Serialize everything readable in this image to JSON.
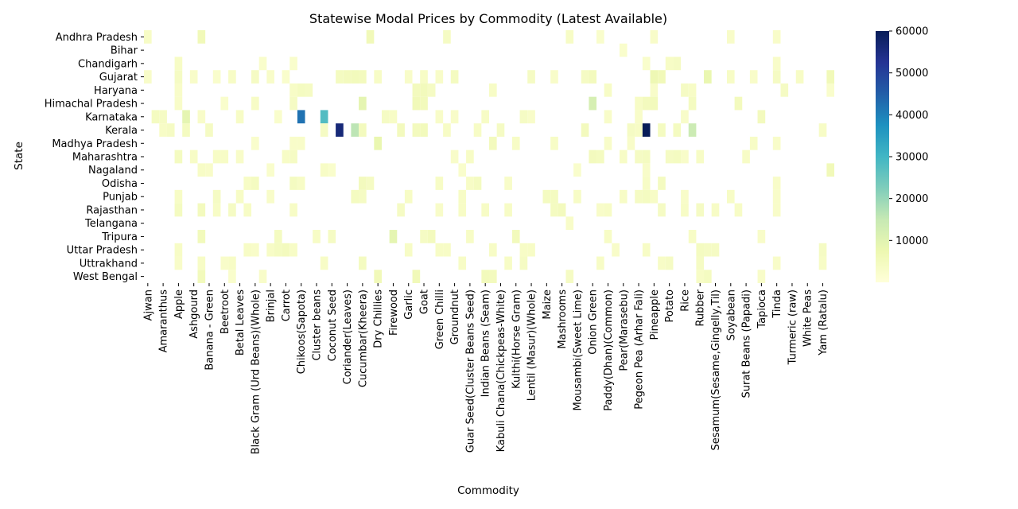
{
  "chart_data": {
    "type": "heatmap",
    "title": "Statewise Modal Prices by Commodity (Latest Available)",
    "xlabel": "Commodity",
    "ylabel": "State",
    "colormap": "YlGnBu",
    "colorbar": {
      "min": 0,
      "max": 60000,
      "ticks": [
        "10000",
        "20000",
        "30000",
        "40000",
        "50000",
        "60000"
      ]
    },
    "states": [
      "Andhra Pradesh",
      "Bihar",
      "Chandigarh",
      "Gujarat",
      "Haryana",
      "Himachal Pradesh",
      "Karnataka",
      "Kerala",
      "Madhya Pradesh",
      "Maharashtra",
      "Nagaland",
      "Odisha",
      "Punjab",
      "Rajasthan",
      "Telangana",
      "Tripura",
      "Uttar Pradesh",
      "Uttrakhand",
      "West Bengal"
    ],
    "x_tick_labels": [
      "Ajwan",
      "Amaranthus",
      "Apple",
      "Ashgourd",
      "Banana - Green",
      "Beetroot",
      "Betal Leaves",
      "Black Gram (Urd Beans)(Whole)",
      "Brinjal",
      "Carrot",
      "Chikoos(Sapota)",
      "Cluster beans",
      "Coconut Seed",
      "Coriander(Leaves)",
      "Cucumbar(Kheera)",
      "Dry Chillies",
      "Firewood",
      "Garlic",
      "Goat",
      "Green Chilli",
      "Groundnut",
      "Guar Seed(Cluster Beans Seed)",
      "Indian Beans (Seam)",
      "Kabuli Chana(Chickpeas-White)",
      "Kulthi(Horse Gram)",
      "Lentil (Masur)(Whole)",
      "Maize",
      "Mashrooms",
      "Mousambi(Sweet Lime)",
      "Onion Green",
      "Paddy(Dhan)(Common)",
      "Pear(Marasebu)",
      "Pegeon Pea (Arhar Fali)",
      "Pineapple",
      "Potato",
      "Rice",
      "Rubber",
      "Sesamum(Sesame,Gingelly,Til)",
      "Soyabean",
      "Surat Beans (Papadi)",
      "Tapioca",
      "Tinda",
      "Turmeric (raw)",
      "White Peas",
      "Yam (Ratalu)"
    ],
    "n_commodities": 90,
    "cells": [
      [
        0,
        0,
        3500
      ],
      [
        0,
        7,
        6000
      ],
      [
        0,
        29,
        6000
      ],
      [
        0,
        39,
        4000
      ],
      [
        0,
        55,
        3500
      ],
      [
        0,
        59,
        2500
      ],
      [
        0,
        66,
        3000
      ],
      [
        0,
        76,
        3000
      ],
      [
        0,
        82,
        3000
      ],
      [
        1,
        62,
        2500
      ],
      [
        2,
        4,
        3500
      ],
      [
        2,
        15,
        2500
      ],
      [
        2,
        19,
        2500
      ],
      [
        2,
        65,
        2500
      ],
      [
        2,
        68,
        3500
      ],
      [
        2,
        69,
        4000
      ],
      [
        2,
        82,
        3000
      ],
      [
        3,
        0,
        3000
      ],
      [
        3,
        4,
        4000
      ],
      [
        3,
        6,
        3000
      ],
      [
        3,
        9,
        2500
      ],
      [
        3,
        11,
        3500
      ],
      [
        3,
        14,
        4000
      ],
      [
        3,
        16,
        3000
      ],
      [
        3,
        18,
        2500
      ],
      [
        3,
        25,
        4500
      ],
      [
        3,
        26,
        5000
      ],
      [
        3,
        27,
        5500
      ],
      [
        3,
        28,
        5000
      ],
      [
        3,
        30,
        3500
      ],
      [
        3,
        34,
        3000
      ],
      [
        3,
        36,
        3500
      ],
      [
        3,
        38,
        3000
      ],
      [
        3,
        40,
        4500
      ],
      [
        3,
        50,
        4000
      ],
      [
        3,
        53,
        3000
      ],
      [
        3,
        57,
        4000
      ],
      [
        3,
        58,
        5000
      ],
      [
        3,
        66,
        7000
      ],
      [
        3,
        67,
        6000
      ],
      [
        3,
        73,
        8000
      ],
      [
        3,
        76,
        3500
      ],
      [
        3,
        79,
        3000
      ],
      [
        3,
        82,
        4000
      ],
      [
        3,
        85,
        3500
      ],
      [
        3,
        89,
        6000
      ],
      [
        4,
        4,
        3000
      ],
      [
        4,
        19,
        3500
      ],
      [
        4,
        20,
        4500
      ],
      [
        4,
        21,
        4000
      ],
      [
        4,
        35,
        5000
      ],
      [
        4,
        36,
        5500
      ],
      [
        4,
        37,
        4000
      ],
      [
        4,
        45,
        3500
      ],
      [
        4,
        60,
        3500
      ],
      [
        4,
        66,
        3000
      ],
      [
        4,
        70,
        4000
      ],
      [
        4,
        71,
        3500
      ],
      [
        4,
        83,
        4000
      ],
      [
        4,
        89,
        2500
      ],
      [
        5,
        4,
        3000
      ],
      [
        5,
        10,
        2500
      ],
      [
        5,
        14,
        3500
      ],
      [
        5,
        19,
        4000
      ],
      [
        5,
        28,
        9000
      ],
      [
        5,
        35,
        6000
      ],
      [
        5,
        36,
        5500
      ],
      [
        5,
        58,
        12000
      ],
      [
        5,
        64,
        3500
      ],
      [
        5,
        65,
        5000
      ],
      [
        5,
        66,
        5500
      ],
      [
        5,
        71,
        4500
      ],
      [
        5,
        77,
        5000
      ],
      [
        6,
        1,
        4500
      ],
      [
        6,
        2,
        4000
      ],
      [
        6,
        5,
        9000
      ],
      [
        6,
        7,
        3000
      ],
      [
        6,
        12,
        3500
      ],
      [
        6,
        17,
        2500
      ],
      [
        6,
        20,
        42000
      ],
      [
        6,
        23,
        28000
      ],
      [
        6,
        31,
        4000
      ],
      [
        6,
        32,
        3500
      ],
      [
        6,
        38,
        3000
      ],
      [
        6,
        40,
        3000
      ],
      [
        6,
        44,
        3500
      ],
      [
        6,
        49,
        4000
      ],
      [
        6,
        50,
        3000
      ],
      [
        6,
        60,
        3000
      ],
      [
        6,
        64,
        3000
      ],
      [
        6,
        70,
        3000
      ],
      [
        6,
        80,
        5000
      ],
      [
        7,
        2,
        3500
      ],
      [
        7,
        3,
        4000
      ],
      [
        7,
        5,
        4500
      ],
      [
        7,
        8,
        4000
      ],
      [
        7,
        23,
        4000
      ],
      [
        7,
        25,
        56000
      ],
      [
        7,
        27,
        16000
      ],
      [
        7,
        28,
        5000
      ],
      [
        7,
        33,
        5000
      ],
      [
        7,
        35,
        5000
      ],
      [
        7,
        36,
        5500
      ],
      [
        7,
        39,
        3500
      ],
      [
        7,
        43,
        3500
      ],
      [
        7,
        46,
        4000
      ],
      [
        7,
        57,
        5000
      ],
      [
        7,
        63,
        4000
      ],
      [
        7,
        64,
        3500
      ],
      [
        7,
        65,
        60000
      ],
      [
        7,
        67,
        4500
      ],
      [
        7,
        69,
        4500
      ],
      [
        7,
        71,
        14000
      ],
      [
        7,
        88,
        3500
      ],
      [
        8,
        14,
        2500
      ],
      [
        8,
        19,
        3000
      ],
      [
        8,
        20,
        3000
      ],
      [
        8,
        30,
        8000
      ],
      [
        8,
        45,
        5000
      ],
      [
        8,
        48,
        3500
      ],
      [
        8,
        53,
        3500
      ],
      [
        8,
        60,
        3000
      ],
      [
        8,
        63,
        3000
      ],
      [
        8,
        79,
        3500
      ],
      [
        8,
        82,
        3000
      ],
      [
        9,
        4,
        4500
      ],
      [
        9,
        6,
        3500
      ],
      [
        9,
        9,
        3500
      ],
      [
        9,
        10,
        3500
      ],
      [
        9,
        12,
        3000
      ],
      [
        9,
        18,
        3500
      ],
      [
        9,
        19,
        4000
      ],
      [
        9,
        40,
        3000
      ],
      [
        9,
        42,
        3500
      ],
      [
        9,
        58,
        5000
      ],
      [
        9,
        59,
        4500
      ],
      [
        9,
        62,
        3500
      ],
      [
        9,
        64,
        4000
      ],
      [
        9,
        65,
        4500
      ],
      [
        9,
        68,
        4000
      ],
      [
        9,
        69,
        4500
      ],
      [
        9,
        70,
        3000
      ],
      [
        9,
        72,
        3500
      ],
      [
        9,
        78,
        3500
      ],
      [
        10,
        7,
        3500
      ],
      [
        10,
        8,
        3000
      ],
      [
        10,
        16,
        2500
      ],
      [
        10,
        23,
        3500
      ],
      [
        10,
        24,
        2500
      ],
      [
        10,
        41,
        2500
      ],
      [
        10,
        56,
        2500
      ],
      [
        10,
        65,
        3000
      ],
      [
        10,
        89,
        6000
      ],
      [
        11,
        13,
        3500
      ],
      [
        11,
        14,
        4500
      ],
      [
        11,
        19,
        4500
      ],
      [
        11,
        20,
        3500
      ],
      [
        11,
        28,
        5000
      ],
      [
        11,
        29,
        4000
      ],
      [
        11,
        38,
        3500
      ],
      [
        11,
        42,
        3500
      ],
      [
        11,
        43,
        4500
      ],
      [
        11,
        47,
        3000
      ],
      [
        11,
        65,
        3500
      ],
      [
        11,
        67,
        4500
      ],
      [
        11,
        82,
        3000
      ],
      [
        12,
        4,
        3500
      ],
      [
        12,
        9,
        4000
      ],
      [
        12,
        12,
        3500
      ],
      [
        12,
        16,
        3000
      ],
      [
        12,
        27,
        4500
      ],
      [
        12,
        28,
        4000
      ],
      [
        12,
        34,
        3500
      ],
      [
        12,
        41,
        3500
      ],
      [
        12,
        52,
        4500
      ],
      [
        12,
        53,
        4500
      ],
      [
        12,
        56,
        3500
      ],
      [
        12,
        62,
        3500
      ],
      [
        12,
        64,
        4000
      ],
      [
        12,
        65,
        4500
      ],
      [
        12,
        66,
        3500
      ],
      [
        12,
        70,
        3000
      ],
      [
        12,
        76,
        3500
      ],
      [
        12,
        82,
        3000
      ],
      [
        13,
        4,
        4500
      ],
      [
        13,
        7,
        5000
      ],
      [
        13,
        9,
        3500
      ],
      [
        13,
        11,
        4000
      ],
      [
        13,
        13,
        3500
      ],
      [
        13,
        19,
        3500
      ],
      [
        13,
        33,
        4000
      ],
      [
        13,
        38,
        3000
      ],
      [
        13,
        41,
        3500
      ],
      [
        13,
        44,
        3500
      ],
      [
        13,
        47,
        3500
      ],
      [
        13,
        53,
        4500
      ],
      [
        13,
        54,
        5000
      ],
      [
        13,
        59,
        3000
      ],
      [
        13,
        60,
        3500
      ],
      [
        13,
        67,
        4000
      ],
      [
        13,
        70,
        3500
      ],
      [
        13,
        72,
        4000
      ],
      [
        13,
        74,
        3500
      ],
      [
        13,
        77,
        3500
      ],
      [
        13,
        82,
        3000
      ],
      [
        14,
        55,
        3000
      ],
      [
        15,
        7,
        5500
      ],
      [
        15,
        17,
        4500
      ],
      [
        15,
        22,
        3500
      ],
      [
        15,
        24,
        4000
      ],
      [
        15,
        32,
        9000
      ],
      [
        15,
        36,
        4000
      ],
      [
        15,
        37,
        5000
      ],
      [
        15,
        42,
        3500
      ],
      [
        15,
        48,
        5500
      ],
      [
        15,
        60,
        3500
      ],
      [
        15,
        71,
        3500
      ],
      [
        15,
        80,
        3000
      ],
      [
        16,
        4,
        3500
      ],
      [
        16,
        13,
        3500
      ],
      [
        16,
        14,
        3000
      ],
      [
        16,
        16,
        3500
      ],
      [
        16,
        17,
        4500
      ],
      [
        16,
        18,
        5000
      ],
      [
        16,
        19,
        3500
      ],
      [
        16,
        34,
        3500
      ],
      [
        16,
        38,
        3500
      ],
      [
        16,
        39,
        3500
      ],
      [
        16,
        45,
        3500
      ],
      [
        16,
        49,
        3500
      ],
      [
        16,
        50,
        3500
      ],
      [
        16,
        61,
        3000
      ],
      [
        16,
        65,
        3500
      ],
      [
        16,
        72,
        4500
      ],
      [
        16,
        73,
        4000
      ],
      [
        16,
        74,
        4000
      ],
      [
        16,
        88,
        4000
      ],
      [
        17,
        4,
        3000
      ],
      [
        17,
        7,
        3500
      ],
      [
        17,
        10,
        3000
      ],
      [
        17,
        11,
        3500
      ],
      [
        17,
        23,
        3500
      ],
      [
        17,
        28,
        4500
      ],
      [
        17,
        41,
        3500
      ],
      [
        17,
        47,
        3500
      ],
      [
        17,
        49,
        4000
      ],
      [
        17,
        59,
        3500
      ],
      [
        17,
        67,
        3500
      ],
      [
        17,
        68,
        4000
      ],
      [
        17,
        72,
        4000
      ],
      [
        17,
        82,
        3000
      ],
      [
        17,
        88,
        3500
      ],
      [
        18,
        7,
        5500
      ],
      [
        18,
        11,
        2500
      ],
      [
        18,
        15,
        3000
      ],
      [
        18,
        30,
        6000
      ],
      [
        18,
        35,
        6000
      ],
      [
        18,
        44,
        5500
      ],
      [
        18,
        45,
        5000
      ],
      [
        18,
        55,
        4000
      ],
      [
        18,
        72,
        3500
      ],
      [
        18,
        73,
        4500
      ],
      [
        18,
        80,
        3000
      ]
    ]
  }
}
